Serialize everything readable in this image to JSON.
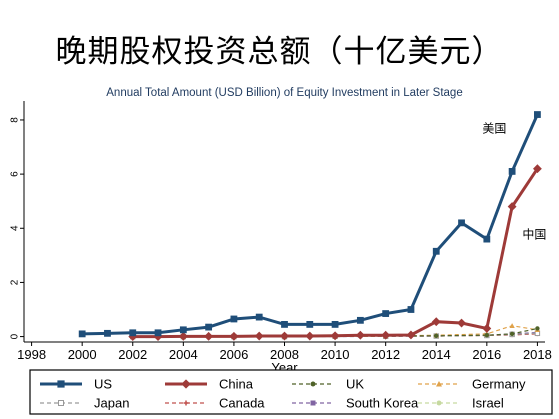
{
  "slide": {
    "title": "晚期股权投资总额（十亿美元）"
  },
  "chart_data": {
    "type": "line",
    "title": "Annual Total Amount (USD Billion) of Equity Investment in Later Stage",
    "xlabel": "Year",
    "ylabel": "",
    "xlim": [
      1997.7,
      2018.3
    ],
    "ylim": [
      -0.2,
      8.7
    ],
    "xticks": [
      1998,
      2000,
      2002,
      2004,
      2006,
      2008,
      2010,
      2012,
      2014,
      2016,
      2018
    ],
    "yticks": [
      0,
      2,
      4,
      6,
      8
    ],
    "grid": false,
    "legend_position": "bottom",
    "annotations": [
      {
        "text": "美国",
        "series": "US"
      },
      {
        "text": "中国",
        "series": "China"
      }
    ],
    "series": [
      {
        "name": "US",
        "color": "#1f4e79",
        "marker": "square",
        "dash": "solid",
        "x": [
          2000,
          2001,
          2002,
          2003,
          2004,
          2005,
          2006,
          2007,
          2008,
          2009,
          2010,
          2011,
          2012,
          2013,
          2014,
          2015,
          2016,
          2017,
          2018
        ],
        "y": [
          0.1,
          0.12,
          0.14,
          0.14,
          0.25,
          0.35,
          0.65,
          0.72,
          0.45,
          0.45,
          0.45,
          0.6,
          0.85,
          1.0,
          3.15,
          4.2,
          3.6,
          6.1,
          8.2
        ]
      },
      {
        "name": "China",
        "color": "#9e3a38",
        "marker": "diamond",
        "dash": "solid",
        "x": [
          2002,
          2003,
          2004,
          2005,
          2006,
          2007,
          2008,
          2009,
          2010,
          2011,
          2012,
          2013,
          2014,
          2015,
          2016,
          2017,
          2018
        ],
        "y": [
          0.0,
          0.0,
          0.01,
          0.01,
          0.01,
          0.02,
          0.02,
          0.02,
          0.03,
          0.05,
          0.05,
          0.06,
          0.55,
          0.5,
          0.3,
          4.8,
          6.2
        ]
      },
      {
        "name": "UK",
        "color": "#4f6228",
        "marker": "circle",
        "dash": "dashed",
        "x": [
          2002,
          2004,
          2006,
          2008,
          2010,
          2012,
          2014,
          2016,
          2017,
          2018
        ],
        "y": [
          0.0,
          0.0,
          0.01,
          0.01,
          0.02,
          0.02,
          0.03,
          0.05,
          0.1,
          0.3
        ]
      },
      {
        "name": "Germany",
        "color": "#e0a24a",
        "marker": "triangle",
        "dash": "dashed",
        "x": [
          2002,
          2004,
          2006,
          2008,
          2010,
          2012,
          2014,
          2016,
          2017,
          2018
        ],
        "y": [
          0.0,
          0.0,
          0.0,
          0.01,
          0.01,
          0.02,
          0.05,
          0.1,
          0.4,
          0.25
        ]
      },
      {
        "name": "Japan",
        "color": "#9a9a9a",
        "marker": "square-open",
        "dash": "dashed",
        "x": [
          2002,
          2004,
          2006,
          2008,
          2010,
          2012,
          2014,
          2016,
          2017,
          2018
        ],
        "y": [
          0.0,
          0.0,
          0.0,
          0.0,
          0.01,
          0.01,
          0.02,
          0.04,
          0.08,
          0.12
        ]
      },
      {
        "name": "Canada",
        "color": "#c0504d",
        "marker": "plus",
        "dash": "dashed",
        "x": [
          2002,
          2004,
          2006,
          2008,
          2010,
          2012,
          2014,
          2016,
          2017,
          2018
        ],
        "y": [
          0.0,
          0.0,
          0.0,
          0.0,
          0.01,
          0.02,
          0.02,
          0.04,
          0.06,
          0.1
        ]
      },
      {
        "name": "South Korea",
        "color": "#8064a2",
        "marker": "square",
        "dash": "dashed",
        "x": [
          2002,
          2004,
          2006,
          2008,
          2010,
          2012,
          2014,
          2016,
          2017,
          2018
        ],
        "y": [
          0.0,
          0.0,
          0.0,
          0.0,
          0.0,
          0.01,
          0.02,
          0.05,
          0.1,
          0.15
        ]
      },
      {
        "name": "Israel",
        "color": "#c6d9a0",
        "marker": "circle",
        "dash": "dashed",
        "x": [
          2002,
          2004,
          2006,
          2008,
          2010,
          2012,
          2014,
          2016,
          2017,
          2018
        ],
        "y": [
          0.0,
          0.0,
          0.0,
          0.01,
          0.01,
          0.02,
          0.03,
          0.05,
          0.08,
          0.12
        ]
      }
    ]
  }
}
